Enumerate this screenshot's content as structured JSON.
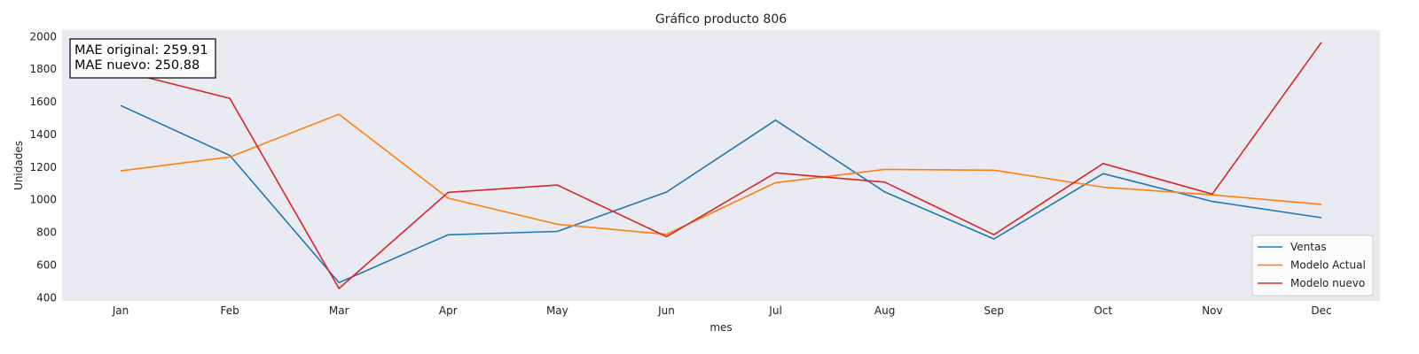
{
  "chart_data": {
    "type": "line",
    "title": "Gráfico producto 806",
    "xlabel": "mes",
    "ylabel": "Unidades",
    "categories": [
      "Jan",
      "Feb",
      "Mar",
      "Apr",
      "May",
      "Jun",
      "Jul",
      "Aug",
      "Sep",
      "Oct",
      "Nov",
      "Dec"
    ],
    "ylim": [
      380,
      2040
    ],
    "yticks": [
      400,
      600,
      800,
      1000,
      1200,
      1400,
      1600,
      1800,
      2000
    ],
    "grid": false,
    "legend_position": "bottom-right",
    "background": "#eaeaf2",
    "annotation": [
      "MAE original: 259.91",
      "MAE nuevo: 250.88"
    ],
    "series": [
      {
        "name": "Ventas",
        "color": "#1f77b4",
        "values": [
          1578,
          1272,
          492,
          785,
          806,
          1047,
          1488,
          1048,
          760,
          1160,
          990,
          890
        ]
      },
      {
        "name": "Modelo Actual",
        "color": "#ff7f0e",
        "values": [
          1177,
          1262,
          1524,
          1010,
          850,
          788,
          1105,
          1186,
          1181,
          1077,
          1030,
          972
        ]
      },
      {
        "name": "Modelo nuevo",
        "color": "#d62728",
        "values": [
          1790,
          1622,
          456,
          1045,
          1090,
          774,
          1165,
          1108,
          786,
          1222,
          1035,
          1965
        ]
      }
    ]
  }
}
